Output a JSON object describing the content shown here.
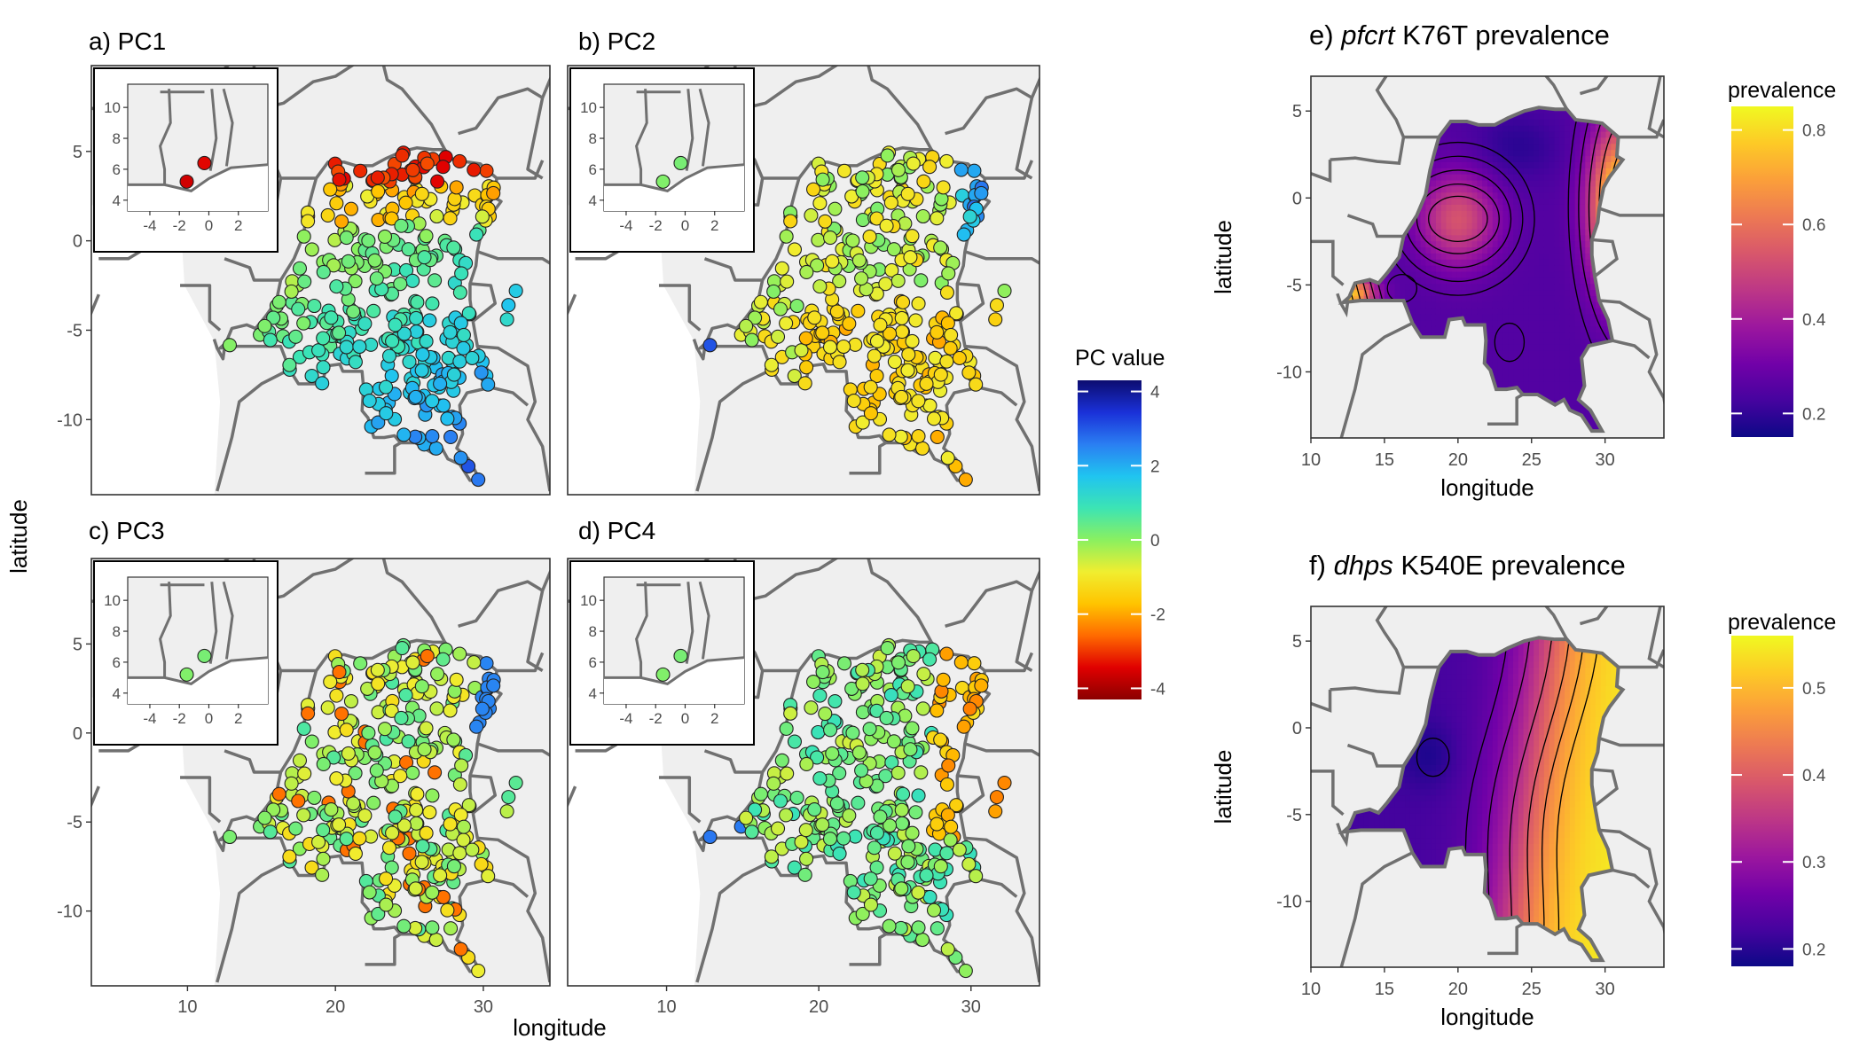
{
  "shared_axes": {
    "xlabel": "longitude",
    "ylabel": "latitude"
  },
  "pc_panels": [
    {
      "id": "a",
      "title": "a) PC1"
    },
    {
      "id": "b",
      "title": "b) PC2"
    },
    {
      "id": "c",
      "title": "c) PC3"
    },
    {
      "id": "d",
      "title": "d) PC4"
    }
  ],
  "pc_legend": {
    "title": "PC value",
    "ticks": [
      "4",
      "2",
      "0",
      "-2",
      "-4"
    ],
    "colors": [
      "#8b0000",
      "#e00000",
      "#ff6a00",
      "#ffc400",
      "#f0ee30",
      "#8af060",
      "#3ce4b4",
      "#20c4f0",
      "#2a7ef2",
      "#1a30d8",
      "#0c0c70"
    ]
  },
  "pc_axes": {
    "x_ticks": [
      "10",
      "20",
      "30"
    ],
    "y_ticks": [
      "5",
      "0",
      "-5",
      "-10"
    ],
    "inset_x_ticks": [
      "-4",
      "-2",
      "0",
      "2"
    ],
    "inset_y_ticks": [
      "10",
      "8",
      "6",
      "4"
    ]
  },
  "prevalence_panels": [
    {
      "id": "e",
      "title_prefix": "e)",
      "title_gene": "pfcrt",
      "title_rest": " K76T prevalence",
      "legend_title": "prevalence",
      "legend_ticks": [
        "0.8",
        "0.6",
        "0.4",
        "0.2"
      ],
      "x_ticks": [
        "10",
        "15",
        "20",
        "25",
        "30"
      ],
      "y_ticks": [
        "5",
        "0",
        "-5",
        "-10"
      ],
      "xlabel": "longitude",
      "ylabel": "latitude"
    },
    {
      "id": "f",
      "title_prefix": "f)",
      "title_gene": "dhps",
      "title_rest": " K540E prevalence",
      "legend_title": "prevalence",
      "legend_ticks": [
        "0.5",
        "0.4",
        "0.3",
        "0.2"
      ],
      "x_ticks": [
        "10",
        "15",
        "20",
        "25",
        "30"
      ],
      "y_ticks": [
        "5",
        "0",
        "-5",
        "-10"
      ],
      "xlabel": "longitude",
      "ylabel": "latitude"
    }
  ],
  "prevalence_colors": [
    "#0d0887",
    "#46039f",
    "#7201a8",
    "#9c179e",
    "#bd3786",
    "#d8576b",
    "#ed7953",
    "#fb9f3a",
    "#fdca26",
    "#f0f921"
  ]
}
